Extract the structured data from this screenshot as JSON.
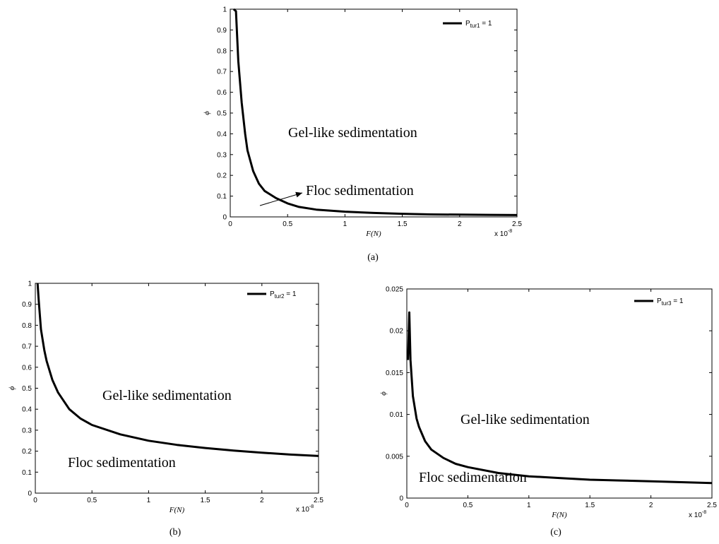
{
  "chart_data": [
    {
      "type": "line",
      "panel_label": "(a)",
      "xlabel": "F(N)",
      "ylabel": "ϕ",
      "x_multiplier": "x 10",
      "x_multiplier_exp": "-8",
      "xlim": [
        0,
        2.5
      ],
      "ylim": [
        0,
        1
      ],
      "xticks": [
        "0",
        "0.5",
        "1",
        "1.5",
        "2",
        "2.5"
      ],
      "yticks": [
        "0",
        "0.1",
        "0.2",
        "0.3",
        "0.4",
        "0.5",
        "0.6",
        "0.7",
        "0.8",
        "0.9",
        "1"
      ],
      "legend": {
        "main": "P",
        "sub": "tur1",
        "suffix": " = 1",
        "position": "top-right"
      },
      "annotations": [
        "Gel-like sedimentation",
        "Floc sedimentation"
      ],
      "arrow": true,
      "series": [
        {
          "name": "P_tur1 = 1",
          "x": [
            0.03,
            0.05,
            0.07,
            0.1,
            0.13,
            0.15,
            0.2,
            0.25,
            0.3,
            0.4,
            0.5,
            0.6,
            0.75,
            1.0,
            1.25,
            1.5,
            1.75,
            2.0,
            2.25,
            2.5
          ],
          "y": [
            1.0,
            0.99,
            0.75,
            0.55,
            0.4,
            0.32,
            0.22,
            0.16,
            0.125,
            0.09,
            0.065,
            0.048,
            0.035,
            0.025,
            0.019,
            0.015,
            0.012,
            0.011,
            0.01,
            0.009
          ]
        }
      ]
    },
    {
      "type": "line",
      "panel_label": "(b)",
      "xlabel": "F(N)",
      "ylabel": "ϕ",
      "x_multiplier": "x 10",
      "x_multiplier_exp": "-8",
      "xlim": [
        0,
        2.5
      ],
      "ylim": [
        0,
        1
      ],
      "xticks": [
        "0",
        "0.5",
        "1",
        "1.5",
        "2",
        "2.5"
      ],
      "yticks": [
        "0",
        "0.1",
        "0.2",
        "0.3",
        "0.4",
        "0.5",
        "0.6",
        "0.7",
        "0.8",
        "0.9",
        "1"
      ],
      "legend": {
        "main": "P",
        "sub": "tur2",
        "suffix": " = 1",
        "position": "top-right"
      },
      "annotations": [
        "Gel-like sedimentation",
        "Floc sedimentation"
      ],
      "arrow": false,
      "series": [
        {
          "name": "P_tur2 = 1",
          "x": [
            0.02,
            0.03,
            0.05,
            0.08,
            0.1,
            0.15,
            0.2,
            0.3,
            0.4,
            0.5,
            0.75,
            1.0,
            1.25,
            1.5,
            1.75,
            2.0,
            2.25,
            2.5
          ],
          "y": [
            1.0,
            0.92,
            0.78,
            0.68,
            0.63,
            0.54,
            0.48,
            0.4,
            0.355,
            0.325,
            0.28,
            0.25,
            0.23,
            0.215,
            0.203,
            0.193,
            0.184,
            0.177
          ]
        }
      ]
    },
    {
      "type": "line",
      "panel_label": "(c)",
      "xlabel": "F(N)",
      "ylabel": "ϕ",
      "x_multiplier": "x 10",
      "x_multiplier_exp": "-8",
      "xlim": [
        0,
        2.5
      ],
      "ylim": [
        0,
        0.025
      ],
      "xticks": [
        "0",
        "0.5",
        "1",
        "1.5",
        "2",
        "2.5"
      ],
      "yticks": [
        "0",
        "0.005",
        "0.01",
        "0.015",
        "0.02",
        "0.025"
      ],
      "legend": {
        "main": "P",
        "sub": "tur3",
        "suffix": " = 1",
        "position": "top-right"
      },
      "annotations": [
        "Gel-like sedimentation",
        "Floc sedimentation"
      ],
      "arrow": false,
      "series": [
        {
          "name": "P_tur3 = 1",
          "x": [
            0.01,
            0.02,
            0.03,
            0.05,
            0.08,
            0.1,
            0.15,
            0.2,
            0.3,
            0.4,
            0.5,
            0.75,
            1.0,
            1.25,
            1.5,
            1.75,
            2.0,
            2.25,
            2.5
          ],
          "y": [
            0.0165,
            0.0222,
            0.0165,
            0.0122,
            0.0095,
            0.0085,
            0.0068,
            0.0058,
            0.0048,
            0.0041,
            0.0037,
            0.003,
            0.0026,
            0.0024,
            0.0022,
            0.0021,
            0.002,
            0.0019,
            0.0018
          ]
        }
      ]
    }
  ]
}
